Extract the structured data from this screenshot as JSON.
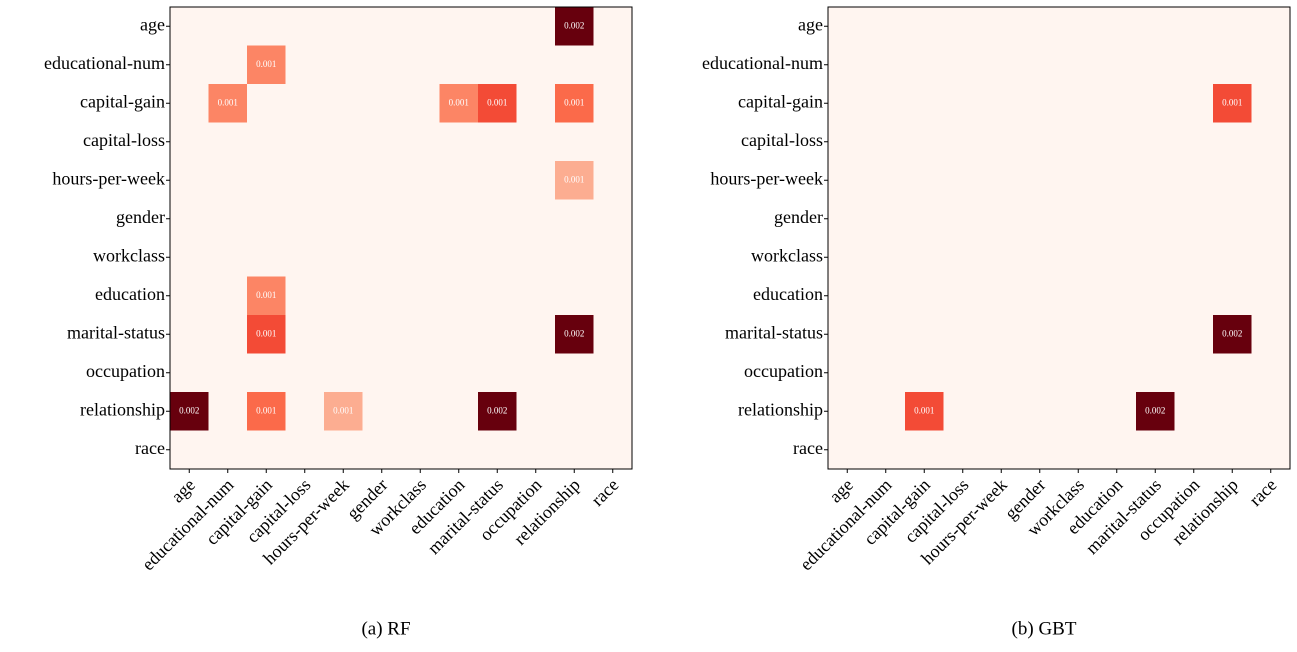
{
  "chart_data": [
    {
      "type": "heatmap",
      "caption": "(a) RF",
      "x_categories": [
        "age",
        "educational-num",
        "capital-gain",
        "capital-loss",
        "hours-per-week",
        "gender",
        "workclass",
        "education",
        "marital-status",
        "occupation",
        "relationship",
        "race"
      ],
      "y_categories": [
        "age",
        "educational-num",
        "capital-gain",
        "capital-loss",
        "hours-per-week",
        "gender",
        "workclass",
        "education",
        "marital-status",
        "occupation",
        "relationship",
        "race"
      ],
      "colormap": "Reds",
      "values": [
        [
          0,
          0,
          0,
          0,
          0,
          0,
          0,
          0,
          0,
          0,
          0.0024,
          0
        ],
        [
          0,
          0,
          0.001,
          0,
          0,
          0,
          0,
          0,
          0,
          0,
          0,
          0
        ],
        [
          0,
          0.001,
          0,
          0,
          0,
          0,
          0,
          0.001,
          0.0014,
          0,
          0.0012,
          0
        ],
        [
          0,
          0,
          0,
          0,
          0,
          0,
          0,
          0,
          0,
          0,
          0,
          0
        ],
        [
          0,
          0,
          0,
          0,
          0,
          0,
          0,
          0,
          0,
          0,
          0.0007,
          0
        ],
        [
          0,
          0,
          0,
          0,
          0,
          0,
          0,
          0,
          0,
          0,
          0,
          0
        ],
        [
          0,
          0,
          0,
          0,
          0,
          0,
          0,
          0,
          0,
          0,
          0,
          0
        ],
        [
          0,
          0,
          0.001,
          0,
          0,
          0,
          0,
          0,
          0,
          0,
          0,
          0
        ],
        [
          0,
          0,
          0.0014,
          0,
          0,
          0,
          0,
          0,
          0,
          0,
          0.0024,
          0
        ],
        [
          0,
          0,
          0,
          0,
          0,
          0,
          0,
          0,
          0,
          0,
          0,
          0
        ],
        [
          0.0024,
          0,
          0.0012,
          0,
          0.0007,
          0,
          0,
          0,
          0.0024,
          0,
          0,
          0
        ],
        [
          0,
          0,
          0,
          0,
          0,
          0,
          0,
          0,
          0,
          0,
          0,
          0
        ]
      ],
      "value_labels": [
        [
          null,
          null,
          null,
          null,
          null,
          null,
          null,
          null,
          null,
          null,
          "0.002",
          null
        ],
        [
          null,
          null,
          "0.001",
          null,
          null,
          null,
          null,
          null,
          null,
          null,
          null,
          null
        ],
        [
          null,
          "0.001",
          null,
          null,
          null,
          null,
          null,
          "0.001",
          "0.001",
          null,
          "0.001",
          null
        ],
        [
          null,
          null,
          null,
          null,
          null,
          null,
          null,
          null,
          null,
          null,
          null,
          null
        ],
        [
          null,
          null,
          null,
          null,
          null,
          null,
          null,
          null,
          null,
          null,
          "0.001",
          null
        ],
        [
          null,
          null,
          null,
          null,
          null,
          null,
          null,
          null,
          null,
          null,
          null,
          null
        ],
        [
          null,
          null,
          null,
          null,
          null,
          null,
          null,
          null,
          null,
          null,
          null,
          null
        ],
        [
          null,
          null,
          "0.001",
          null,
          null,
          null,
          null,
          null,
          null,
          null,
          null,
          null
        ],
        [
          null,
          null,
          "0.001",
          null,
          null,
          null,
          null,
          null,
          null,
          null,
          "0.002",
          null
        ],
        [
          null,
          null,
          null,
          null,
          null,
          null,
          null,
          null,
          null,
          null,
          null,
          null
        ],
        [
          "0.002",
          null,
          "0.001",
          null,
          "0.001",
          null,
          null,
          null,
          "0.002",
          null,
          null,
          null
        ],
        [
          null,
          null,
          null,
          null,
          null,
          null,
          null,
          null,
          null,
          null,
          null,
          null
        ]
      ]
    },
    {
      "type": "heatmap",
      "caption": "(b) GBT",
      "x_categories": [
        "age",
        "educational-num",
        "capital-gain",
        "capital-loss",
        "hours-per-week",
        "gender",
        "workclass",
        "education",
        "marital-status",
        "occupation",
        "relationship",
        "race"
      ],
      "y_categories": [
        "age",
        "educational-num",
        "capital-gain",
        "capital-loss",
        "hours-per-week",
        "gender",
        "workclass",
        "education",
        "marital-status",
        "occupation",
        "relationship",
        "race"
      ],
      "colormap": "Reds",
      "values": [
        [
          0,
          0,
          0,
          0,
          0,
          0,
          0,
          0,
          0,
          0,
          0,
          0
        ],
        [
          0,
          0,
          0,
          0,
          0,
          0,
          0,
          0,
          0,
          0,
          0,
          0
        ],
        [
          0,
          0,
          0,
          0,
          0,
          0,
          0,
          0,
          0,
          0,
          0.0014,
          0
        ],
        [
          0,
          0,
          0,
          0,
          0,
          0,
          0,
          0,
          0,
          0,
          0,
          0
        ],
        [
          0,
          0,
          0,
          0,
          0,
          0,
          0,
          0,
          0,
          0,
          0,
          0
        ],
        [
          0,
          0,
          0,
          0,
          0,
          0,
          0,
          0,
          0,
          0,
          0,
          0
        ],
        [
          0,
          0,
          0,
          0,
          0,
          0,
          0,
          0,
          0,
          0,
          0,
          0
        ],
        [
          0,
          0,
          0,
          0,
          0,
          0,
          0,
          0,
          0,
          0,
          0,
          0
        ],
        [
          0,
          0,
          0,
          0,
          0,
          0,
          0,
          0,
          0,
          0,
          0.0024,
          0
        ],
        [
          0,
          0,
          0,
          0,
          0,
          0,
          0,
          0,
          0,
          0,
          0,
          0
        ],
        [
          0,
          0,
          0.0014,
          0,
          0,
          0,
          0,
          0,
          0.0024,
          0,
          0,
          0
        ],
        [
          0,
          0,
          0,
          0,
          0,
          0,
          0,
          0,
          0,
          0,
          0,
          0
        ]
      ],
      "value_labels": [
        [
          null,
          null,
          null,
          null,
          null,
          null,
          null,
          null,
          null,
          null,
          null,
          null
        ],
        [
          null,
          null,
          null,
          null,
          null,
          null,
          null,
          null,
          null,
          null,
          null,
          null
        ],
        [
          null,
          null,
          null,
          null,
          null,
          null,
          null,
          null,
          null,
          null,
          "0.001",
          null
        ],
        [
          null,
          null,
          null,
          null,
          null,
          null,
          null,
          null,
          null,
          null,
          null,
          null
        ],
        [
          null,
          null,
          null,
          null,
          null,
          null,
          null,
          null,
          null,
          null,
          null,
          null
        ],
        [
          null,
          null,
          null,
          null,
          null,
          null,
          null,
          null,
          null,
          null,
          null,
          null
        ],
        [
          null,
          null,
          null,
          null,
          null,
          null,
          null,
          null,
          null,
          null,
          null,
          null
        ],
        [
          null,
          null,
          null,
          null,
          null,
          null,
          null,
          null,
          null,
          null,
          null,
          null
        ],
        [
          null,
          null,
          null,
          null,
          null,
          null,
          null,
          null,
          null,
          null,
          "0.002",
          null
        ],
        [
          null,
          null,
          null,
          null,
          null,
          null,
          null,
          null,
          null,
          null,
          null,
          null
        ],
        [
          null,
          null,
          "0.001",
          null,
          null,
          null,
          null,
          null,
          "0.002",
          null,
          null,
          null
        ],
        [
          null,
          null,
          null,
          null,
          null,
          null,
          null,
          null,
          null,
          null,
          null,
          null
        ]
      ]
    }
  ]
}
